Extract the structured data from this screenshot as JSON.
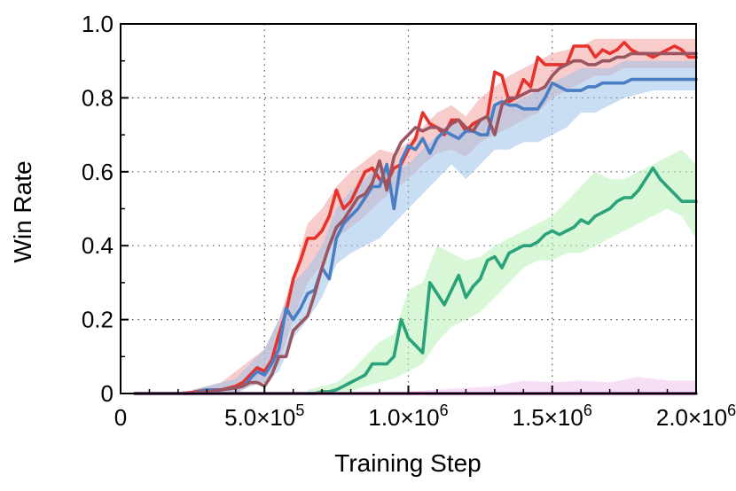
{
  "chart_data": {
    "type": "line",
    "title": "",
    "xlabel": "Training Step",
    "ylabel": "Win Rate",
    "xlim": [
      0,
      2000000
    ],
    "ylim": [
      0,
      1.0
    ],
    "grid": true,
    "legend": "none",
    "x_ticks": [
      {
        "value": 0,
        "mantissa": "0",
        "exp": ""
      },
      {
        "value": 500000,
        "mantissa": "5.0×10",
        "exp": "5"
      },
      {
        "value": 1000000,
        "mantissa": "1.0×10",
        "exp": "6"
      },
      {
        "value": 1500000,
        "mantissa": "1.5×10",
        "exp": "6"
      },
      {
        "value": 2000000,
        "mantissa": "2.0×10",
        "exp": "6"
      }
    ],
    "y_ticks": [
      {
        "value": 0,
        "label": "0"
      },
      {
        "value": 0.2,
        "label": "0.2"
      },
      {
        "value": 0.4,
        "label": "0.4"
      },
      {
        "value": 0.6,
        "label": "0.6"
      },
      {
        "value": 0.8,
        "label": "0.8"
      },
      {
        "value": 1.0,
        "label": "1.0"
      }
    ],
    "series": [
      {
        "color": "#e8312a",
        "x": [
          50000,
          200000,
          250000,
          300000,
          350000,
          400000,
          425000,
          450000,
          475000,
          500000,
          525000,
          550000,
          575000,
          600000,
          625000,
          650000,
          675000,
          700000,
          725000,
          750000,
          775000,
          800000,
          825000,
          850000,
          875000,
          900000,
          925000,
          950000,
          975000,
          1000000,
          1025000,
          1050000,
          1075000,
          1100000,
          1125000,
          1150000,
          1175000,
          1200000,
          1225000,
          1250000,
          1275000,
          1300000,
          1325000,
          1350000,
          1375000,
          1400000,
          1425000,
          1450000,
          1475000,
          1500000,
          1525000,
          1550000,
          1575000,
          1600000,
          1625000,
          1650000,
          1675000,
          1700000,
          1725000,
          1750000,
          1775000,
          1800000,
          1825000,
          1850000,
          1875000,
          1900000,
          1925000,
          1950000,
          1975000,
          2000000
        ],
        "y": [
          0,
          0,
          0.003,
          0.01,
          0.01,
          0.02,
          0.03,
          0.05,
          0.07,
          0.06,
          0.09,
          0.16,
          0.22,
          0.31,
          0.36,
          0.42,
          0.42,
          0.44,
          0.48,
          0.55,
          0.5,
          0.52,
          0.56,
          0.6,
          0.61,
          0.58,
          0.57,
          0.61,
          0.62,
          0.66,
          0.69,
          0.76,
          0.73,
          0.72,
          0.7,
          0.74,
          0.74,
          0.71,
          0.73,
          0.74,
          0.75,
          0.87,
          0.86,
          0.79,
          0.8,
          0.85,
          0.83,
          0.91,
          0.89,
          0.89,
          0.89,
          0.89,
          0.94,
          0.94,
          0.94,
          0.91,
          0.93,
          0.92,
          0.93,
          0.95,
          0.93,
          0.92,
          0.92,
          0.91,
          0.92,
          0.93,
          0.94,
          0.93,
          0.91,
          0.91
        ]
      },
      {
        "color": "#4a7ec4",
        "x": [
          50000,
          200000,
          250000,
          300000,
          350000,
          400000,
          425000,
          450000,
          475000,
          500000,
          525000,
          550000,
          575000,
          600000,
          625000,
          650000,
          675000,
          700000,
          725000,
          750000,
          775000,
          800000,
          825000,
          850000,
          875000,
          900000,
          925000,
          950000,
          975000,
          1000000,
          1025000,
          1050000,
          1075000,
          1100000,
          1125000,
          1150000,
          1175000,
          1200000,
          1225000,
          1250000,
          1275000,
          1300000,
          1325000,
          1350000,
          1375000,
          1400000,
          1425000,
          1450000,
          1475000,
          1500000,
          1525000,
          1550000,
          1575000,
          1600000,
          1625000,
          1650000,
          1675000,
          1700000,
          1725000,
          1750000,
          1775000,
          1800000,
          1825000,
          1850000,
          1875000,
          1900000,
          1925000,
          1950000,
          1975000,
          2000000
        ],
        "y": [
          0,
          0,
          0,
          0.01,
          0.01,
          0.015,
          0.02,
          0.04,
          0.06,
          0.05,
          0.08,
          0.12,
          0.23,
          0.2,
          0.23,
          0.27,
          0.28,
          0.34,
          0.31,
          0.42,
          0.46,
          0.48,
          0.5,
          0.53,
          0.56,
          0.56,
          0.62,
          0.5,
          0.63,
          0.67,
          0.66,
          0.69,
          0.65,
          0.69,
          0.71,
          0.7,
          0.69,
          0.71,
          0.71,
          0.7,
          0.7,
          0.78,
          0.79,
          0.78,
          0.78,
          0.77,
          0.77,
          0.77,
          0.8,
          0.84,
          0.83,
          0.82,
          0.82,
          0.82,
          0.83,
          0.83,
          0.84,
          0.84,
          0.84,
          0.84,
          0.85,
          0.85,
          0.85,
          0.85,
          0.85,
          0.85,
          0.85,
          0.85,
          0.85,
          0.85
        ]
      },
      {
        "color": "#9b5560",
        "x": [
          50000,
          200000,
          250000,
          300000,
          350000,
          400000,
          425000,
          450000,
          475000,
          500000,
          525000,
          550000,
          575000,
          600000,
          625000,
          650000,
          675000,
          700000,
          725000,
          750000,
          775000,
          800000,
          825000,
          850000,
          875000,
          900000,
          925000,
          950000,
          975000,
          1000000,
          1025000,
          1050000,
          1075000,
          1100000,
          1125000,
          1150000,
          1175000,
          1200000,
          1225000,
          1250000,
          1275000,
          1300000,
          1325000,
          1350000,
          1375000,
          1400000,
          1425000,
          1450000,
          1475000,
          1500000,
          1525000,
          1550000,
          1575000,
          1600000,
          1625000,
          1650000,
          1675000,
          1700000,
          1725000,
          1750000,
          1775000,
          1800000,
          1825000,
          1850000,
          1875000,
          1900000,
          1925000,
          1950000,
          1975000,
          2000000
        ],
        "y": [
          0,
          0,
          0,
          0.005,
          0.01,
          0.015,
          0.02,
          0.03,
          0.03,
          0.02,
          0.05,
          0.1,
          0.1,
          0.17,
          0.19,
          0.21,
          0.27,
          0.34,
          0.4,
          0.45,
          0.47,
          0.5,
          0.53,
          0.54,
          0.57,
          0.63,
          0.55,
          0.64,
          0.68,
          0.7,
          0.72,
          0.71,
          0.72,
          0.72,
          0.71,
          0.73,
          0.74,
          0.72,
          0.71,
          0.74,
          0.75,
          0.7,
          0.78,
          0.8,
          0.8,
          0.81,
          0.82,
          0.82,
          0.83,
          0.86,
          0.88,
          0.89,
          0.9,
          0.9,
          0.89,
          0.89,
          0.9,
          0.9,
          0.91,
          0.91,
          0.92,
          0.92,
          0.92,
          0.92,
          0.92,
          0.92,
          0.92,
          0.92,
          0.92,
          0.92
        ]
      },
      {
        "color": "#2aa27a",
        "x": [
          50000,
          200000,
          250000,
          300000,
          350000,
          400000,
          425000,
          450000,
          475000,
          500000,
          525000,
          550000,
          575000,
          600000,
          625000,
          650000,
          675000,
          700000,
          725000,
          750000,
          775000,
          800000,
          825000,
          850000,
          875000,
          900000,
          925000,
          950000,
          975000,
          1000000,
          1025000,
          1050000,
          1075000,
          1100000,
          1125000,
          1150000,
          1175000,
          1200000,
          1225000,
          1250000,
          1275000,
          1300000,
          1325000,
          1350000,
          1375000,
          1400000,
          1425000,
          1450000,
          1475000,
          1500000,
          1525000,
          1550000,
          1575000,
          1600000,
          1625000,
          1650000,
          1675000,
          1700000,
          1725000,
          1750000,
          1775000,
          1800000,
          1825000,
          1850000,
          1875000,
          1900000,
          1925000,
          1950000,
          1975000,
          2000000
        ],
        "y": [
          0,
          0,
          0,
          0,
          0,
          0,
          0,
          0,
          0,
          0,
          0,
          0,
          0,
          0,
          0,
          0,
          0,
          0.005,
          0.005,
          0.01,
          0.02,
          0.03,
          0.04,
          0.05,
          0.08,
          0.08,
          0.08,
          0.1,
          0.2,
          0.15,
          0.13,
          0.11,
          0.3,
          0.27,
          0.24,
          0.28,
          0.32,
          0.26,
          0.29,
          0.31,
          0.36,
          0.37,
          0.34,
          0.38,
          0.39,
          0.4,
          0.4,
          0.41,
          0.43,
          0.44,
          0.43,
          0.44,
          0.45,
          0.47,
          0.46,
          0.48,
          0.49,
          0.5,
          0.52,
          0.53,
          0.53,
          0.55,
          0.58,
          0.61,
          0.58,
          0.56,
          0.54,
          0.52,
          0.52,
          0.52
        ]
      },
      {
        "color": "#8a3a8a",
        "x": [
          50000,
          2000000
        ],
        "y": [
          0,
          0
        ]
      }
    ],
    "bands": [
      {
        "color": "#f4a3a3",
        "x": [
          250000,
          300000,
          350000,
          400000,
          450000,
          500000,
          550000,
          600000,
          650000,
          700000,
          750000,
          800000,
          850000,
          900000,
          950000,
          1000000,
          1050000,
          1100000,
          1150000,
          1200000,
          1250000,
          1300000,
          1350000,
          1400000,
          1450000,
          1500000,
          1550000,
          1600000,
          1650000,
          1700000,
          1750000,
          1800000,
          1850000,
          1900000,
          1950000,
          2000000
        ],
        "lower": [
          0,
          0,
          0,
          0,
          0.02,
          0.03,
          0.08,
          0.2,
          0.3,
          0.35,
          0.42,
          0.45,
          0.48,
          0.52,
          0.55,
          0.58,
          0.62,
          0.65,
          0.66,
          0.64,
          0.68,
          0.7,
          0.72,
          0.74,
          0.76,
          0.8,
          0.82,
          0.84,
          0.86,
          0.86,
          0.88,
          0.88,
          0.88,
          0.88,
          0.88,
          0.88
        ],
        "upper": [
          0.01,
          0.02,
          0.03,
          0.06,
          0.09,
          0.12,
          0.2,
          0.32,
          0.46,
          0.5,
          0.56,
          0.6,
          0.63,
          0.66,
          0.65,
          0.68,
          0.72,
          0.76,
          0.78,
          0.75,
          0.8,
          0.83,
          0.86,
          0.88,
          0.9,
          0.92,
          0.93,
          0.94,
          0.96,
          0.96,
          0.96,
          0.96,
          0.96,
          0.96,
          0.96,
          0.96
        ]
      },
      {
        "color": "#9ec2ea",
        "x": [
          250000,
          300000,
          350000,
          400000,
          450000,
          500000,
          550000,
          600000,
          650000,
          700000,
          750000,
          800000,
          850000,
          900000,
          950000,
          1000000,
          1050000,
          1100000,
          1150000,
          1200000,
          1250000,
          1300000,
          1350000,
          1400000,
          1450000,
          1500000,
          1550000,
          1600000,
          1650000,
          1700000,
          1750000,
          1800000,
          1850000,
          1900000,
          1950000,
          2000000
        ],
        "lower": [
          0,
          0,
          0,
          0,
          0.02,
          0.03,
          0.06,
          0.15,
          0.2,
          0.26,
          0.35,
          0.38,
          0.4,
          0.42,
          0.46,
          0.5,
          0.54,
          0.58,
          0.62,
          0.58,
          0.62,
          0.66,
          0.66,
          0.68,
          0.68,
          0.7,
          0.72,
          0.76,
          0.76,
          0.78,
          0.8,
          0.81,
          0.82,
          0.82,
          0.82,
          0.82
        ],
        "upper": [
          0.01,
          0.02,
          0.03,
          0.04,
          0.08,
          0.12,
          0.2,
          0.3,
          0.34,
          0.4,
          0.5,
          0.55,
          0.58,
          0.62,
          0.6,
          0.62,
          0.66,
          0.7,
          0.74,
          0.72,
          0.74,
          0.78,
          0.78,
          0.8,
          0.82,
          0.84,
          0.86,
          0.88,
          0.88,
          0.88,
          0.9,
          0.9,
          0.9,
          0.9,
          0.9,
          0.9
        ]
      },
      {
        "color": "#b6f0b6",
        "x": [
          650000,
          700000,
          750000,
          800000,
          850000,
          900000,
          950000,
          1000000,
          1050000,
          1100000,
          1150000,
          1200000,
          1250000,
          1300000,
          1350000,
          1400000,
          1450000,
          1500000,
          1550000,
          1600000,
          1650000,
          1700000,
          1750000,
          1800000,
          1850000,
          1900000,
          1950000,
          2000000
        ],
        "lower": [
          0,
          0,
          0,
          0.005,
          0.02,
          0.03,
          0.04,
          0.06,
          0.08,
          0.14,
          0.18,
          0.2,
          0.22,
          0.26,
          0.3,
          0.34,
          0.36,
          0.36,
          0.38,
          0.38,
          0.4,
          0.42,
          0.44,
          0.46,
          0.48,
          0.5,
          0.48,
          0.42
        ],
        "upper": [
          0.01,
          0.02,
          0.03,
          0.06,
          0.1,
          0.14,
          0.16,
          0.28,
          0.3,
          0.4,
          0.38,
          0.36,
          0.37,
          0.4,
          0.42,
          0.44,
          0.46,
          0.48,
          0.52,
          0.56,
          0.6,
          0.58,
          0.58,
          0.6,
          0.62,
          0.64,
          0.66,
          0.62
        ]
      },
      {
        "color": "#efc2ef",
        "x": [
          1000000,
          1100000,
          1200000,
          1300000,
          1400000,
          1500000,
          1600000,
          1700000,
          1800000,
          1900000,
          2000000
        ],
        "lower": [
          0,
          0,
          0,
          0,
          0,
          0,
          0,
          0,
          0,
          0,
          0
        ],
        "upper": [
          0.005,
          0.01,
          0.015,
          0.02,
          0.035,
          0.03,
          0.035,
          0.03,
          0.045,
          0.035,
          0.035
        ]
      }
    ]
  }
}
